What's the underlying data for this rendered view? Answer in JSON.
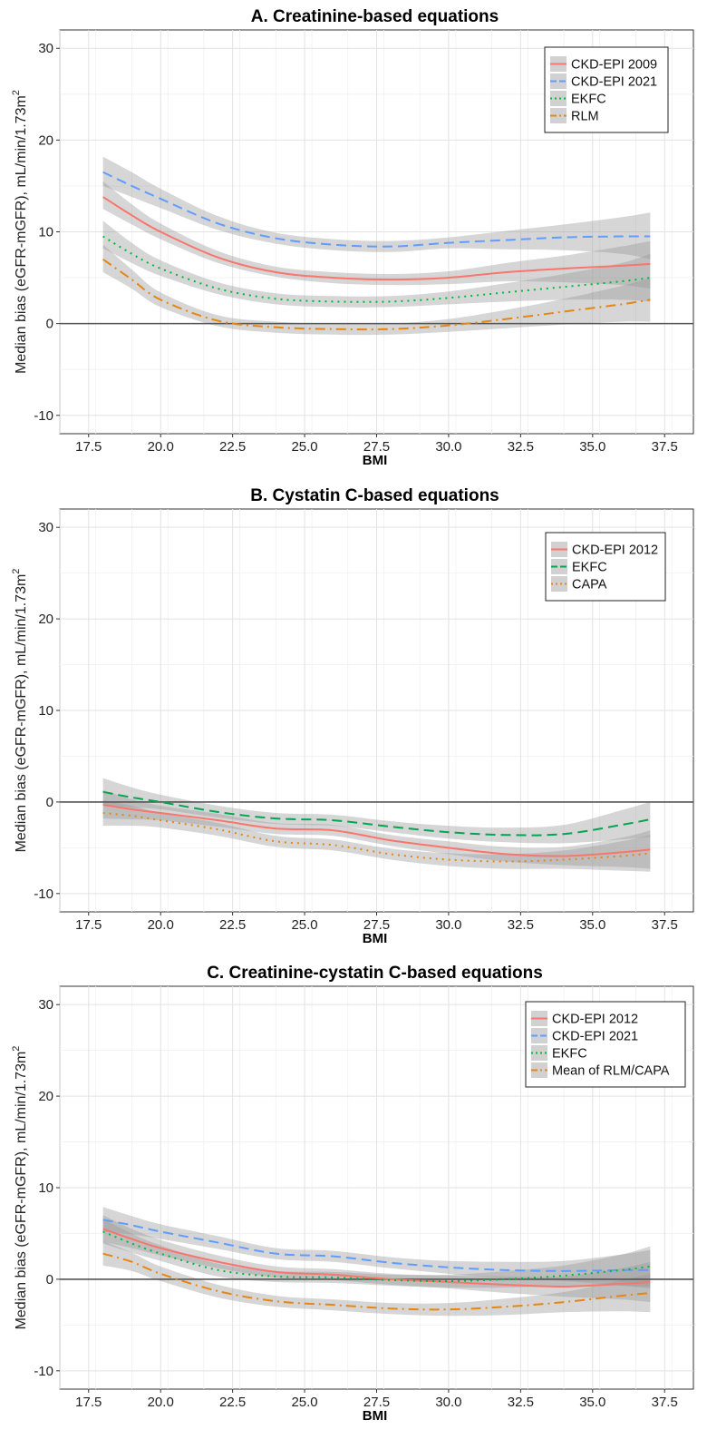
{
  "chart_data": [
    {
      "type": "line",
      "title": "A. Creatinine-based equations",
      "xlabel": "BMI",
      "ylabel": "Median bias (eGFR-mGFR), mL/min/1.73m",
      "ylabel_sup": "2",
      "xlim": [
        16.5,
        38.5
      ],
      "ylim": [
        -12,
        32
      ],
      "xticks": [
        "17.5",
        "20.0",
        "22.5",
        "25.0",
        "27.5",
        "30.0",
        "32.5",
        "35.0",
        "37.5"
      ],
      "yticks": [
        "-10",
        "0",
        "10",
        "20",
        "30"
      ],
      "grid": true,
      "reference_line": 0,
      "legend": "top-right",
      "x": [
        18,
        19,
        20,
        22,
        24,
        26,
        28,
        30,
        32,
        34,
        36,
        37
      ],
      "series": [
        {
          "name": "CKD-EPI 2009",
          "color": "#F8766D",
          "dash": "solid",
          "values": [
            13.8,
            11.8,
            10.0,
            7.2,
            5.6,
            5.0,
            4.8,
            5.0,
            5.6,
            6.0,
            6.3,
            6.5
          ],
          "lower": [
            12.5,
            10.8,
            9.2,
            6.6,
            5.1,
            4.4,
            4.2,
            4.3,
            4.6,
            4.5,
            4.2,
            3.8
          ],
          "upper": [
            15.5,
            13.0,
            10.9,
            7.9,
            6.2,
            5.6,
            5.4,
            5.7,
            6.6,
            7.4,
            8.4,
            9.0
          ]
        },
        {
          "name": "CKD-EPI 2021",
          "color": "#619CFF",
          "dash": "long",
          "values": [
            16.5,
            15.0,
            13.6,
            10.9,
            9.3,
            8.6,
            8.4,
            8.8,
            9.1,
            9.4,
            9.5,
            9.5
          ],
          "lower": [
            15.0,
            13.8,
            12.6,
            10.2,
            8.7,
            8.0,
            7.8,
            8.2,
            8.1,
            8.0,
            7.6,
            7.0
          ],
          "upper": [
            18.2,
            16.5,
            14.7,
            11.7,
            9.9,
            9.2,
            9.0,
            9.4,
            10.1,
            10.8,
            11.6,
            12.1
          ]
        },
        {
          "name": "EKFC",
          "color": "#00BA38",
          "dash": "dotted",
          "values": [
            9.5,
            7.6,
            6.0,
            3.8,
            2.7,
            2.4,
            2.4,
            2.8,
            3.4,
            4.0,
            4.6,
            5.0
          ],
          "lower": [
            8.2,
            6.6,
            5.2,
            3.2,
            2.1,
            1.8,
            1.8,
            2.1,
            2.4,
            2.6,
            2.6,
            2.4
          ],
          "upper": [
            11.2,
            8.8,
            6.9,
            4.5,
            3.3,
            3.0,
            3.0,
            3.5,
            4.4,
            5.4,
            6.6,
            7.6
          ]
        },
        {
          "name": "RLM",
          "color": "#E68613",
          "dash": "dashdot",
          "values": [
            7.0,
            4.8,
            2.6,
            0.3,
            -0.4,
            -0.6,
            -0.6,
            -0.2,
            0.5,
            1.3,
            2.1,
            2.6
          ],
          "lower": [
            5.6,
            3.8,
            1.8,
            -0.3,
            -1.0,
            -1.2,
            -1.2,
            -0.9,
            -0.5,
            -0.1,
            0.2,
            0.2
          ],
          "upper": [
            8.6,
            5.9,
            3.4,
            0.9,
            0.2,
            0.0,
            0.0,
            0.5,
            1.5,
            2.7,
            4.1,
            5.0
          ]
        }
      ]
    },
    {
      "type": "line",
      "title": "B. Cystatin C-based equations",
      "xlabel": "BMI",
      "ylabel": "Median bias (eGFR-mGFR), mL/min/1.73m",
      "ylabel_sup": "2",
      "xlim": [
        16.5,
        38.5
      ],
      "ylim": [
        -12,
        32
      ],
      "xticks": [
        "17.5",
        "20.0",
        "22.5",
        "25.0",
        "27.5",
        "30.0",
        "32.5",
        "35.0",
        "37.5"
      ],
      "yticks": [
        "-10",
        "0",
        "10",
        "20",
        "30"
      ],
      "grid": true,
      "reference_line": 0,
      "legend": "top-right",
      "x": [
        18,
        19,
        20,
        22,
        24,
        26,
        28,
        30,
        32,
        34,
        36,
        37
      ],
      "series": [
        {
          "name": "CKD-EPI 2012",
          "color": "#F8766D",
          "dash": "solid",
          "values": [
            -0.3,
            -0.8,
            -1.2,
            -2.0,
            -2.9,
            -3.1,
            -4.2,
            -5.0,
            -5.7,
            -5.9,
            -5.5,
            -5.2
          ],
          "lower": [
            -1.8,
            -1.9,
            -2.0,
            -2.7,
            -3.5,
            -3.7,
            -4.8,
            -5.7,
            -6.5,
            -6.9,
            -7.1,
            -7.3
          ],
          "upper": [
            1.3,
            0.3,
            -0.4,
            -1.3,
            -2.3,
            -2.5,
            -3.6,
            -4.3,
            -4.9,
            -4.9,
            -3.9,
            -3.1
          ]
        },
        {
          "name": "EKFC",
          "color": "#00A651",
          "dash": "long",
          "values": [
            1.1,
            0.5,
            0.0,
            -1.1,
            -1.8,
            -2.0,
            -2.7,
            -3.3,
            -3.6,
            -3.5,
            -2.5,
            -1.9
          ],
          "lower": [
            -0.4,
            -0.6,
            -0.8,
            -1.7,
            -2.4,
            -2.6,
            -3.3,
            -4.0,
            -4.4,
            -4.5,
            -4.1,
            -3.8
          ],
          "upper": [
            2.6,
            1.6,
            0.8,
            -0.4,
            -1.2,
            -1.4,
            -2.1,
            -2.6,
            -2.8,
            -2.5,
            -0.9,
            0.0
          ]
        },
        {
          "name": "CAPA",
          "color": "#E68613",
          "dash": "dotted",
          "values": [
            -1.2,
            -1.5,
            -2.0,
            -3.0,
            -4.3,
            -4.7,
            -5.7,
            -6.3,
            -6.5,
            -6.3,
            -5.9,
            -5.6
          ],
          "lower": [
            -2.6,
            -2.6,
            -2.8,
            -3.7,
            -4.9,
            -5.3,
            -6.3,
            -7.0,
            -7.3,
            -7.3,
            -7.5,
            -7.6
          ],
          "upper": [
            0.2,
            -0.4,
            -1.2,
            -2.3,
            -3.7,
            -4.1,
            -5.1,
            -5.6,
            -5.7,
            -5.3,
            -4.3,
            -3.6
          ]
        }
      ]
    },
    {
      "type": "line",
      "title": "C. Creatinine-cystatin C-based equations",
      "xlabel": "BMI",
      "ylabel": "Median bias (eGFR-mGFR), mL/min/1.73m",
      "ylabel_sup": "2",
      "xlim": [
        16.5,
        38.5
      ],
      "ylim": [
        -12,
        32
      ],
      "xticks": [
        "17.5",
        "20.0",
        "22.5",
        "25.0",
        "27.5",
        "30.0",
        "32.5",
        "35.0",
        "37.5"
      ],
      "yticks": [
        "-10",
        "0",
        "10",
        "20",
        "30"
      ],
      "grid": true,
      "reference_line": 0,
      "legend": "top-right",
      "x": [
        18,
        19,
        20,
        22,
        24,
        26,
        28,
        30,
        32,
        34,
        36,
        37
      ],
      "series": [
        {
          "name": "CKD-EPI 2012",
          "color": "#F8766D",
          "dash": "solid",
          "values": [
            5.5,
            4.4,
            3.4,
            1.9,
            0.8,
            0.5,
            0.0,
            -0.3,
            -0.6,
            -0.8,
            -0.5,
            -0.3
          ],
          "lower": [
            4.1,
            3.4,
            2.6,
            1.2,
            0.2,
            -0.1,
            -0.6,
            -1.0,
            -1.5,
            -1.9,
            -2.2,
            -2.5
          ],
          "upper": [
            7.0,
            5.5,
            4.3,
            2.6,
            1.4,
            1.1,
            0.6,
            0.4,
            0.3,
            0.3,
            1.2,
            1.9
          ]
        },
        {
          "name": "CKD-EPI 2021",
          "color": "#619CFF",
          "dash": "long",
          "values": [
            6.5,
            5.9,
            5.2,
            4.0,
            2.8,
            2.5,
            1.8,
            1.3,
            1.0,
            0.9,
            1.0,
            1.0
          ],
          "lower": [
            5.2,
            4.9,
            4.4,
            3.3,
            2.2,
            1.9,
            1.2,
            0.6,
            0.1,
            -0.2,
            -0.7,
            -1.0
          ],
          "upper": [
            7.9,
            6.9,
            6.0,
            4.7,
            3.4,
            3.1,
            2.4,
            2.0,
            1.9,
            2.0,
            2.7,
            3.2
          ]
        },
        {
          "name": "EKFC",
          "color": "#00BA38",
          "dash": "dotted",
          "values": [
            5.2,
            3.9,
            2.8,
            1.0,
            0.3,
            0.2,
            -0.1,
            -0.2,
            0.0,
            0.4,
            1.0,
            1.4
          ],
          "lower": [
            3.9,
            2.9,
            2.0,
            0.3,
            -0.3,
            -0.4,
            -0.7,
            -0.9,
            -0.9,
            -0.7,
            -0.7,
            -0.8
          ],
          "upper": [
            6.6,
            5.0,
            3.7,
            1.7,
            0.9,
            0.8,
            0.5,
            0.5,
            0.9,
            1.5,
            2.7,
            3.6
          ]
        },
        {
          "name": "Mean of RLM/CAPA",
          "color": "#E68613",
          "dash": "dashdot",
          "values": [
            2.8,
            1.9,
            0.6,
            -1.3,
            -2.4,
            -2.8,
            -3.2,
            -3.3,
            -3.0,
            -2.5,
            -1.8,
            -1.5
          ],
          "lower": [
            1.5,
            0.9,
            -0.2,
            -2.0,
            -3.0,
            -3.4,
            -3.8,
            -4.0,
            -3.9,
            -3.6,
            -3.5,
            -3.6
          ],
          "upper": [
            4.2,
            2.9,
            1.4,
            -0.6,
            -1.8,
            -2.2,
            -2.6,
            -2.6,
            -2.1,
            -1.4,
            -0.1,
            0.6
          ]
        }
      ]
    }
  ]
}
